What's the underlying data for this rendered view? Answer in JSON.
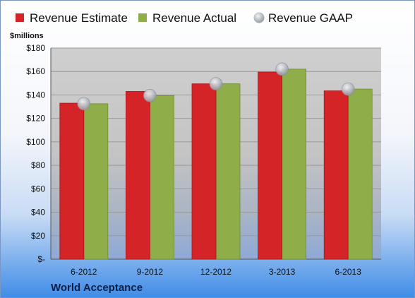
{
  "chart_data": {
    "type": "bar",
    "unit_label": "$millions",
    "footer_title": "World Acceptance",
    "categories": [
      "6-2012",
      "9-2012",
      "12-2012",
      "3-2013",
      "6-2013"
    ],
    "y_ticks": [
      "$-",
      "$20",
      "$40",
      "$60",
      "$80",
      "$100",
      "$120",
      "$140",
      "$160",
      "$180"
    ],
    "ylim": [
      0,
      180
    ],
    "grid": true,
    "legend_position": "top",
    "series": [
      {
        "name": "Revenue Estimate",
        "type": "bar",
        "color": "#d42428",
        "values": [
          133,
          143,
          149.5,
          159.5,
          143.5
        ]
      },
      {
        "name": "Revenue Actual",
        "type": "bar",
        "color": "#8fae4a",
        "values": [
          132.5,
          139.5,
          149.5,
          162,
          145
        ]
      },
      {
        "name": "Revenue GAAP",
        "type": "marker",
        "color": "#b8bcc4",
        "values": [
          132.5,
          139.5,
          149.5,
          162,
          145
        ]
      }
    ]
  }
}
